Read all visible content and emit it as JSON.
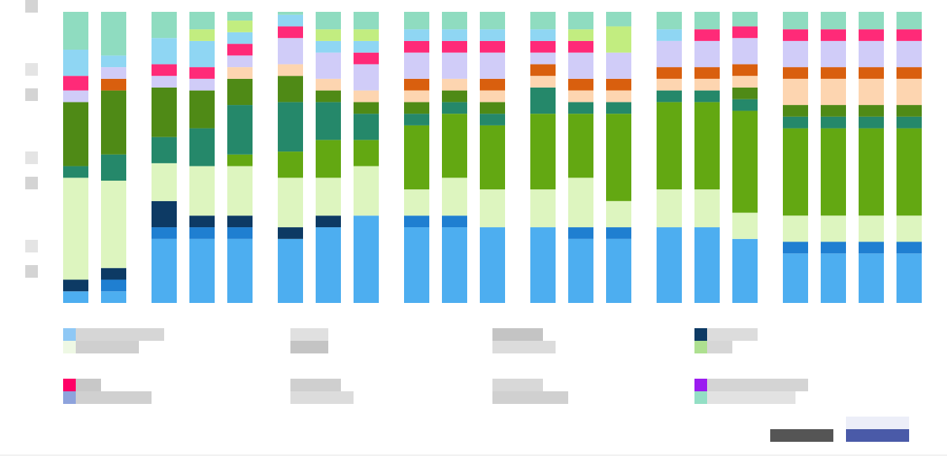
{
  "chart_data": {
    "type": "stacked_bar",
    "ylim": [
      0,
      100
    ],
    "bar_x": [
      80,
      128,
      192,
      240,
      288,
      352,
      400,
      448,
      512,
      560,
      608,
      672,
      720,
      768,
      832,
      880,
      928,
      992,
      1040,
      1088,
      1136
    ],
    "series": [
      {
        "color": "#4daef0",
        "values": [
          4,
          4,
          22,
          22,
          22,
          22,
          26,
          30,
          26,
          26,
          26,
          26,
          22,
          22,
          26,
          26,
          22,
          17,
          17,
          17,
          17
        ]
      },
      {
        "color": "#1f7fd1",
        "values": [
          0,
          4,
          4,
          4,
          4,
          0,
          0,
          0,
          4,
          4,
          0,
          0,
          4,
          4,
          0,
          0,
          0,
          4,
          4,
          4,
          4
        ]
      },
      {
        "color": "#0d3a64",
        "values": [
          4,
          4,
          9,
          4,
          4,
          4,
          4,
          0,
          0,
          0,
          0,
          0,
          0,
          0,
          0,
          0,
          0,
          0,
          0,
          0,
          0
        ]
      },
      {
        "color": "#ddf5bf",
        "values": [
          35,
          30,
          13,
          17,
          17,
          17,
          13,
          17,
          9,
          13,
          13,
          13,
          17,
          9,
          13,
          13,
          9,
          9,
          9,
          9,
          9
        ]
      },
      {
        "color": "#63a812",
        "values": [
          0,
          0,
          0,
          0,
          4,
          9,
          13,
          9,
          22,
          22,
          22,
          26,
          22,
          30,
          30,
          30,
          35,
          30,
          30,
          30,
          30
        ]
      },
      {
        "color": "#25886a",
        "values": [
          4,
          9,
          9,
          13,
          17,
          17,
          13,
          9,
          4,
          4,
          4,
          9,
          4,
          4,
          4,
          4,
          4,
          4,
          4,
          4,
          4
        ]
      },
      {
        "color": "#4f8a16",
        "values": [
          22,
          22,
          17,
          13,
          9,
          9,
          4,
          4,
          4,
          4,
          4,
          0,
          0,
          0,
          0,
          0,
          4,
          4,
          4,
          4,
          4
        ]
      },
      {
        "color": "#fdd5b0",
        "values": [
          0,
          0,
          0,
          0,
          4,
          4,
          4,
          4,
          4,
          4,
          4,
          4,
          4,
          4,
          4,
          4,
          4,
          9,
          9,
          9,
          9
        ]
      },
      {
        "color": "#d95f0e",
        "values": [
          0,
          4,
          0,
          0,
          0,
          0,
          0,
          0,
          4,
          0,
          4,
          4,
          4,
          4,
          4,
          4,
          4,
          4,
          4,
          4,
          4
        ]
      },
      {
        "color": "#d0ccf8",
        "values": [
          4,
          4,
          4,
          4,
          4,
          9,
          9,
          9,
          9,
          9,
          9,
          4,
          9,
          9,
          9,
          9,
          9,
          9,
          9,
          9,
          9
        ]
      },
      {
        "color": "#ff2a78",
        "values": [
          5,
          0,
          4,
          4,
          4,
          4,
          0,
          4,
          4,
          4,
          4,
          4,
          4,
          0,
          0,
          4,
          4,
          4,
          4,
          4,
          4
        ]
      },
      {
        "color": "#8fd6f3",
        "values": [
          9,
          4,
          9,
          9,
          4,
          4,
          4,
          4,
          4,
          4,
          4,
          4,
          0,
          0,
          4,
          0,
          0,
          0,
          0,
          0,
          0
        ]
      },
      {
        "color": "#c2ed80",
        "values": [
          0,
          0,
          0,
          4,
          4,
          0,
          4,
          4,
          0,
          0,
          0,
          0,
          4,
          9,
          0,
          0,
          0,
          0,
          0,
          0,
          0
        ]
      },
      {
        "color": "#8fdcc0",
        "values": [
          13,
          15,
          9,
          6,
          3,
          1,
          6,
          6,
          6,
          6,
          6,
          6,
          6,
          5,
          6,
          6,
          5,
          6,
          6,
          6,
          6
        ]
      }
    ]
  }
}
